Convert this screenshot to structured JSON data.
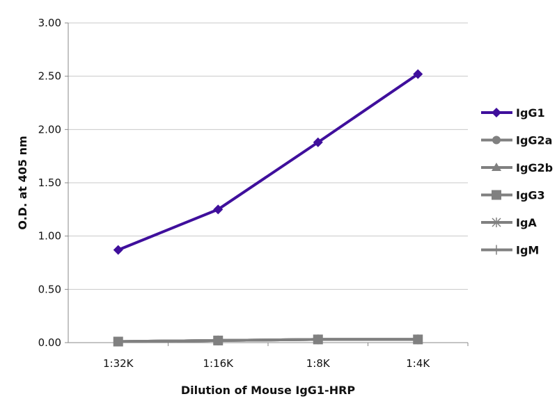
{
  "chart_data": {
    "type": "line",
    "title": "",
    "xlabel": "Dilution of Mouse IgG1-HRP",
    "ylabel": "O.D. at 405 nm",
    "categories": [
      "1:32K",
      "1:16K",
      "1:8K",
      "1:4K"
    ],
    "ylim": [
      0,
      3
    ],
    "yticks": [
      "0.00",
      "0.50",
      "1.00",
      "1.50",
      "2.00",
      "2.50",
      "3.00"
    ],
    "grid": true,
    "legend_position": "right",
    "series": [
      {
        "name": "IgG1",
        "values": [
          0.87,
          1.25,
          1.88,
          2.52
        ],
        "color": "#3f0f9c",
        "marker": "diamond"
      },
      {
        "name": "IgG2a",
        "values": [
          0.01,
          0.02,
          0.03,
          0.03
        ],
        "color": "#808080",
        "marker": "circle"
      },
      {
        "name": "IgG2b",
        "values": [
          0.01,
          0.02,
          0.03,
          0.03
        ],
        "color": "#808080",
        "marker": "triangle"
      },
      {
        "name": "IgG3",
        "values": [
          0.01,
          0.02,
          0.03,
          0.03
        ],
        "color": "#808080",
        "marker": "square"
      },
      {
        "name": "IgA",
        "values": [
          0.01,
          0.02,
          0.03,
          0.03
        ],
        "color": "#808080",
        "marker": "star"
      },
      {
        "name": "IgM",
        "values": [
          0.01,
          0.02,
          0.03,
          0.03
        ],
        "color": "#808080",
        "marker": "plus"
      }
    ]
  }
}
